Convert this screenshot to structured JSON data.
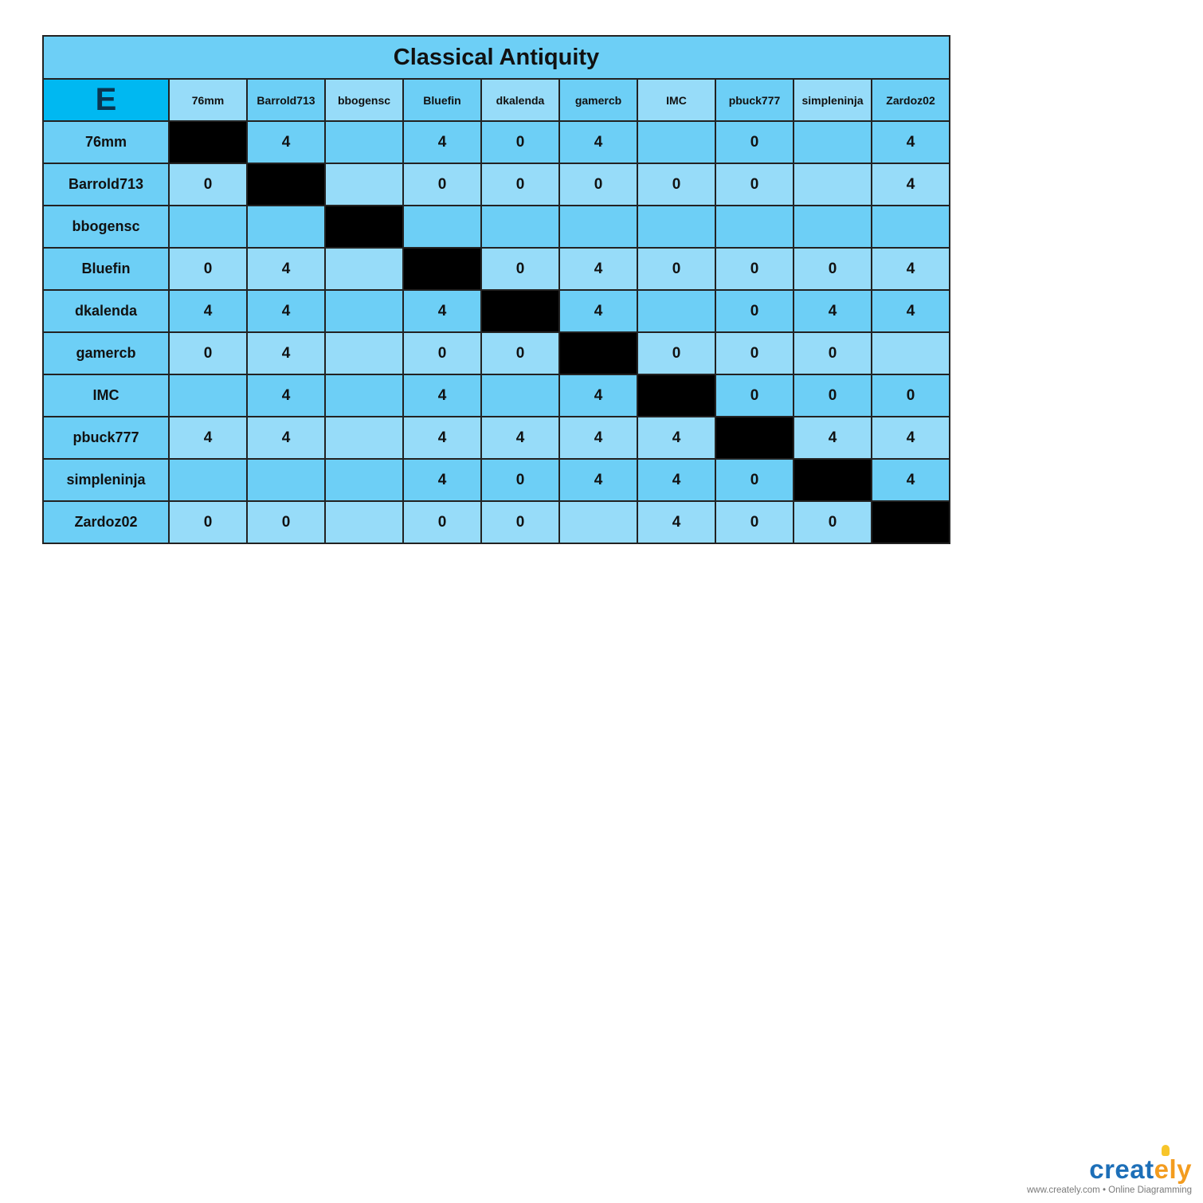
{
  "title": "Classical Antiquity",
  "corner_label": "E",
  "players": [
    "76mm",
    "Barrold713",
    "bbogensc",
    "Bluefin",
    "dkalenda",
    "gamercb",
    "IMC",
    "pbuck777",
    "simpleninja",
    "Zardoz02"
  ],
  "matrix": [
    [
      null,
      "4",
      "",
      "4",
      "0",
      "4",
      "",
      "0",
      "",
      "4"
    ],
    [
      "0",
      null,
      "",
      "0",
      "0",
      "0",
      "0",
      "0",
      "",
      "4"
    ],
    [
      "",
      "",
      null,
      "",
      "",
      "",
      "",
      "",
      "",
      ""
    ],
    [
      "0",
      "4",
      "",
      null,
      "0",
      "4",
      "0",
      "0",
      "0",
      "4"
    ],
    [
      "4",
      "4",
      "",
      "4",
      null,
      "4",
      "",
      "0",
      "4",
      "4"
    ],
    [
      "0",
      "4",
      "",
      "0",
      "0",
      null,
      "0",
      "0",
      "0",
      ""
    ],
    [
      "",
      "4",
      "",
      "4",
      "",
      "4",
      null,
      "0",
      "0",
      "0"
    ],
    [
      "4",
      "4",
      "",
      "4",
      "4",
      "4",
      "4",
      null,
      "4",
      "4"
    ],
    [
      "",
      "",
      "",
      "4",
      "0",
      "4",
      "4",
      "0",
      null,
      "4"
    ],
    [
      "0",
      "0",
      "",
      "0",
      "0",
      "",
      "4",
      "0",
      "0",
      null
    ]
  ],
  "colors": {
    "title_bg": "#6dcff6",
    "corner_bg": "#00b8f1",
    "row_light": "#97dcf9",
    "row_mid": "#6dcff6",
    "diagonal": "#000000"
  },
  "logo": {
    "word_main": "creat",
    "word_accent": "ely",
    "tagline": "www.creately.com • Online Diagramming"
  }
}
